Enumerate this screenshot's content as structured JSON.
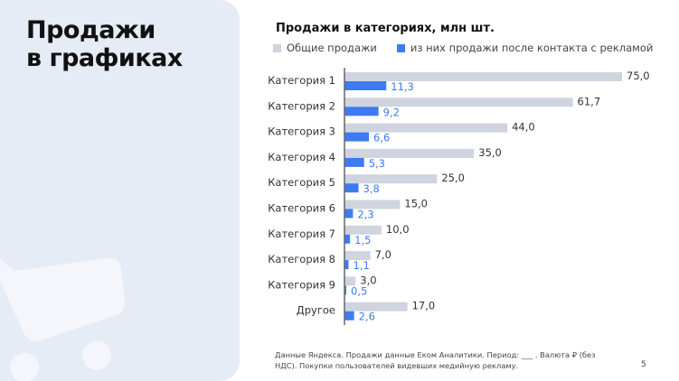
{
  "slide": {
    "title_line1": "Продажи",
    "title_line2": "в графиках",
    "footnote": "Данные Яндекса. Продажи данные Еком Аналитики. Период: ___ . Валюта ₽ (без НДС). Покупки пользователей видевших медийную рекламу.",
    "page_number": "5"
  },
  "colors": {
    "total": "#d0d4df",
    "ad": "#3d7bf1",
    "panel": "#e5ecf6"
  },
  "chart_data": {
    "type": "bar",
    "orientation": "horizontal",
    "title": "Продажи в категориях, млн шт.",
    "categories": [
      "Категория 1",
      "Категория 2",
      "Категория 3",
      "Категория 4",
      "Категория 5",
      "Категория 6",
      "Категория 7",
      "Категория 8",
      "Категория 9",
      "Другое"
    ],
    "series": [
      {
        "name": "Общие продажи",
        "values": [
          75.0,
          61.7,
          44.0,
          35.0,
          25.0,
          15.0,
          10.0,
          7.0,
          3.0,
          17.0
        ],
        "labels": [
          "75,0",
          "61,7",
          "44,0",
          "35,0",
          "25,0",
          "15,0",
          "10,0",
          "7,0",
          "3,0",
          "17,0"
        ]
      },
      {
        "name": "из них продажи после контакта с рекламой",
        "values": [
          11.3,
          9.2,
          6.6,
          5.3,
          3.8,
          2.3,
          1.5,
          1.1,
          0.5,
          2.6
        ],
        "labels": [
          "11,3",
          "9,2",
          "6,6",
          "5,3",
          "3,8",
          "2,3",
          "1,5",
          "1,1",
          "0,5",
          "2,6"
        ]
      }
    ],
    "xlim": [
      0,
      75
    ],
    "grid": false,
    "legend": "top-left"
  }
}
